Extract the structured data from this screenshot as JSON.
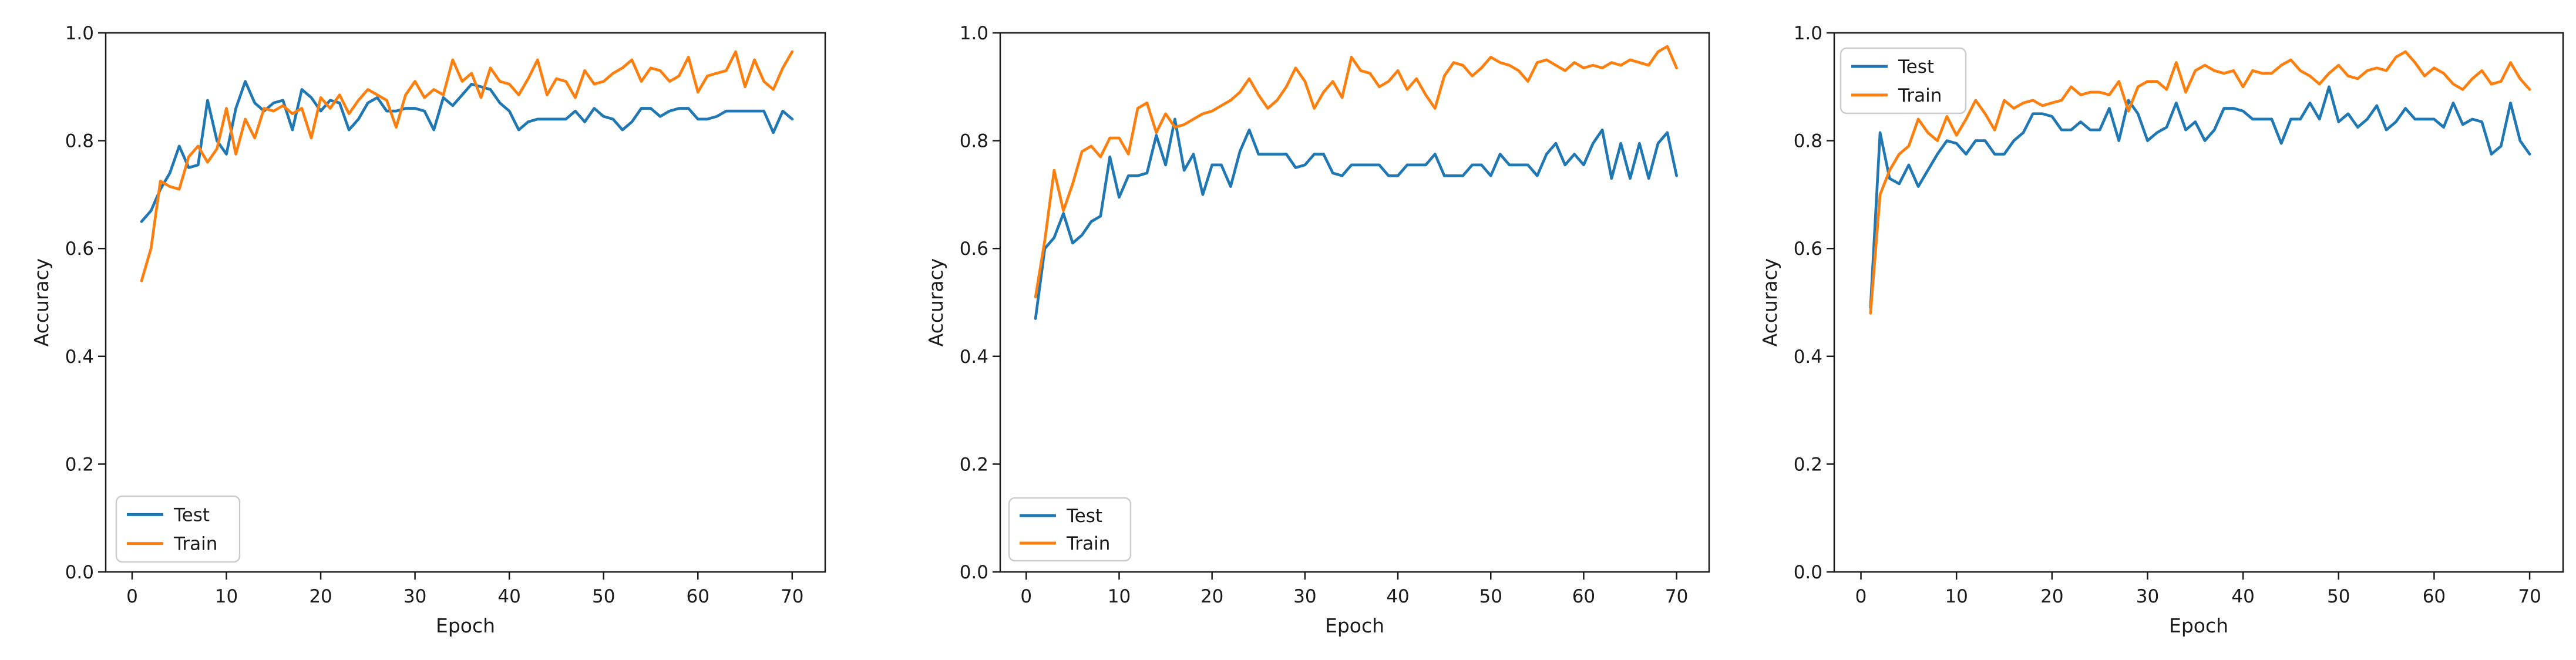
{
  "figure": {
    "xlabel": "Epoch",
    "ylabel": "Accuracy",
    "legend_entries": [
      "Test",
      "Train"
    ],
    "test_color": "#1f77b4",
    "train_color": "#ff7f0e",
    "axis_color": "#1a1a1a",
    "legend_border_color": "#cccccc"
  },
  "epochs": [
    1,
    2,
    3,
    4,
    5,
    6,
    7,
    8,
    9,
    10,
    11,
    12,
    13,
    14,
    15,
    16,
    17,
    18,
    19,
    20,
    21,
    22,
    23,
    24,
    25,
    26,
    27,
    28,
    29,
    30,
    31,
    32,
    33,
    34,
    35,
    36,
    37,
    38,
    39,
    40,
    41,
    42,
    43,
    44,
    45,
    46,
    47,
    48,
    49,
    50,
    51,
    52,
    53,
    54,
    55,
    56,
    57,
    58,
    59,
    60,
    61,
    62,
    63,
    64,
    65,
    66,
    67,
    68,
    69,
    70
  ],
  "chart_data": [
    {
      "type": "line",
      "title": "",
      "xlabel": "Epoch",
      "ylabel": "Accuracy",
      "xlim": [
        -2.8,
        73.5
      ],
      "ylim": [
        0,
        1
      ],
      "xticks": [
        0,
        10,
        20,
        30,
        40,
        50,
        60,
        70
      ],
      "yticks": [
        0.0,
        0.2,
        0.4,
        0.6,
        0.8,
        1.0
      ],
      "grid": false,
      "legend": {
        "position": "lower-left",
        "entries": [
          "Test",
          "Train"
        ]
      },
      "series": [
        {
          "name": "Test",
          "color": "#1f77b4",
          "values": [
            0.65,
            0.67,
            0.71,
            0.74,
            0.79,
            0.75,
            0.755,
            0.875,
            0.8,
            0.775,
            0.86,
            0.91,
            0.87,
            0.855,
            0.87,
            0.875,
            0.82,
            0.895,
            0.88,
            0.855,
            0.875,
            0.87,
            0.82,
            0.84,
            0.87,
            0.88,
            0.855,
            0.855,
            0.86,
            0.86,
            0.855,
            0.82,
            0.88,
            0.865,
            0.885,
            0.905,
            0.9,
            0.895,
            0.87,
            0.855,
            0.82,
            0.835,
            0.84,
            0.84,
            0.84,
            0.84,
            0.855,
            0.835,
            0.86,
            0.845,
            0.84,
            0.82,
            0.835,
            0.86,
            0.86,
            0.845,
            0.855,
            0.86,
            0.86,
            0.84,
            0.84,
            0.845,
            0.855,
            0.855,
            0.855,
            0.855,
            0.855,
            0.815,
            0.855,
            0.84
          ]
        },
        {
          "name": "Train",
          "color": "#ff7f0e",
          "values": [
            0.54,
            0.6,
            0.725,
            0.715,
            0.71,
            0.77,
            0.79,
            0.76,
            0.785,
            0.86,
            0.775,
            0.84,
            0.805,
            0.86,
            0.855,
            0.865,
            0.85,
            0.86,
            0.805,
            0.88,
            0.86,
            0.885,
            0.85,
            0.875,
            0.895,
            0.885,
            0.875,
            0.825,
            0.885,
            0.91,
            0.88,
            0.895,
            0.885,
            0.95,
            0.91,
            0.925,
            0.88,
            0.935,
            0.91,
            0.905,
            0.885,
            0.915,
            0.95,
            0.885,
            0.915,
            0.91,
            0.88,
            0.93,
            0.905,
            0.91,
            0.925,
            0.935,
            0.95,
            0.91,
            0.935,
            0.93,
            0.91,
            0.92,
            0.955,
            0.89,
            0.92,
            0.925,
            0.93,
            0.965,
            0.9,
            0.95,
            0.91,
            0.895,
            0.935,
            0.965
          ]
        }
      ]
    },
    {
      "type": "line",
      "title": "",
      "xlabel": "Epoch",
      "ylabel": "Accuracy",
      "xlim": [
        -2.8,
        73.5
      ],
      "ylim": [
        0,
        1
      ],
      "xticks": [
        0,
        10,
        20,
        30,
        40,
        50,
        60,
        70
      ],
      "yticks": [
        0.0,
        0.2,
        0.4,
        0.6,
        0.8,
        1.0
      ],
      "grid": false,
      "legend": {
        "position": "lower-left",
        "entries": [
          "Test",
          "Train"
        ]
      },
      "series": [
        {
          "name": "Test",
          "color": "#1f77b4",
          "values": [
            0.47,
            0.6,
            0.62,
            0.665,
            0.61,
            0.625,
            0.65,
            0.66,
            0.77,
            0.695,
            0.735,
            0.735,
            0.74,
            0.81,
            0.755,
            0.84,
            0.745,
            0.775,
            0.7,
            0.755,
            0.755,
            0.715,
            0.78,
            0.82,
            0.775,
            0.775,
            0.775,
            0.775,
            0.75,
            0.755,
            0.775,
            0.775,
            0.74,
            0.735,
            0.755,
            0.755,
            0.755,
            0.755,
            0.735,
            0.735,
            0.755,
            0.755,
            0.755,
            0.775,
            0.735,
            0.735,
            0.735,
            0.755,
            0.755,
            0.735,
            0.775,
            0.755,
            0.755,
            0.755,
            0.735,
            0.775,
            0.795,
            0.755,
            0.775,
            0.755,
            0.795,
            0.82,
            0.73,
            0.795,
            0.73,
            0.795,
            0.73,
            0.795,
            0.815,
            0.735
          ]
        },
        {
          "name": "Train",
          "color": "#ff7f0e",
          "values": [
            0.51,
            0.615,
            0.745,
            0.67,
            0.72,
            0.78,
            0.79,
            0.77,
            0.805,
            0.805,
            0.775,
            0.86,
            0.87,
            0.815,
            0.85,
            0.825,
            0.83,
            0.84,
            0.85,
            0.855,
            0.865,
            0.875,
            0.89,
            0.915,
            0.885,
            0.86,
            0.875,
            0.9,
            0.935,
            0.91,
            0.86,
            0.89,
            0.91,
            0.88,
            0.955,
            0.93,
            0.925,
            0.9,
            0.91,
            0.93,
            0.895,
            0.915,
            0.885,
            0.86,
            0.92,
            0.945,
            0.94,
            0.92,
            0.935,
            0.955,
            0.945,
            0.94,
            0.93,
            0.91,
            0.945,
            0.95,
            0.94,
            0.93,
            0.945,
            0.935,
            0.94,
            0.935,
            0.945,
            0.94,
            0.95,
            0.945,
            0.94,
            0.965,
            0.975,
            0.935
          ]
        }
      ]
    },
    {
      "type": "line",
      "title": "",
      "xlabel": "Epoch",
      "ylabel": "Accuracy",
      "xlim": [
        -2.8,
        73.5
      ],
      "ylim": [
        0,
        1
      ],
      "xticks": [
        0,
        10,
        20,
        30,
        40,
        50,
        60,
        70
      ],
      "yticks": [
        0.0,
        0.2,
        0.4,
        0.6,
        0.8,
        1.0
      ],
      "grid": false,
      "legend": {
        "position": "upper-left",
        "entries": [
          "Test",
          "Train"
        ]
      },
      "series": [
        {
          "name": "Test",
          "color": "#1f77b4",
          "values": [
            0.49,
            0.815,
            0.73,
            0.72,
            0.755,
            0.715,
            0.745,
            0.775,
            0.8,
            0.795,
            0.775,
            0.8,
            0.8,
            0.775,
            0.775,
            0.8,
            0.815,
            0.85,
            0.85,
            0.845,
            0.82,
            0.82,
            0.835,
            0.82,
            0.82,
            0.86,
            0.8,
            0.875,
            0.85,
            0.8,
            0.815,
            0.825,
            0.87,
            0.82,
            0.835,
            0.8,
            0.82,
            0.86,
            0.86,
            0.855,
            0.84,
            0.84,
            0.84,
            0.795,
            0.84,
            0.84,
            0.87,
            0.84,
            0.9,
            0.835,
            0.85,
            0.825,
            0.84,
            0.865,
            0.82,
            0.835,
            0.86,
            0.84,
            0.84,
            0.84,
            0.825,
            0.87,
            0.83,
            0.84,
            0.835,
            0.775,
            0.79,
            0.87,
            0.8,
            0.775
          ]
        },
        {
          "name": "Train",
          "color": "#ff7f0e",
          "values": [
            0.48,
            0.7,
            0.745,
            0.775,
            0.79,
            0.84,
            0.815,
            0.8,
            0.845,
            0.81,
            0.84,
            0.875,
            0.85,
            0.82,
            0.875,
            0.86,
            0.87,
            0.875,
            0.865,
            0.87,
            0.875,
            0.9,
            0.885,
            0.89,
            0.89,
            0.885,
            0.91,
            0.855,
            0.9,
            0.91,
            0.91,
            0.895,
            0.945,
            0.89,
            0.93,
            0.94,
            0.93,
            0.925,
            0.93,
            0.9,
            0.93,
            0.925,
            0.925,
            0.94,
            0.95,
            0.93,
            0.92,
            0.905,
            0.925,
            0.94,
            0.92,
            0.915,
            0.93,
            0.935,
            0.93,
            0.955,
            0.965,
            0.945,
            0.92,
            0.935,
            0.925,
            0.905,
            0.895,
            0.915,
            0.93,
            0.905,
            0.91,
            0.945,
            0.915,
            0.895
          ]
        }
      ]
    }
  ]
}
